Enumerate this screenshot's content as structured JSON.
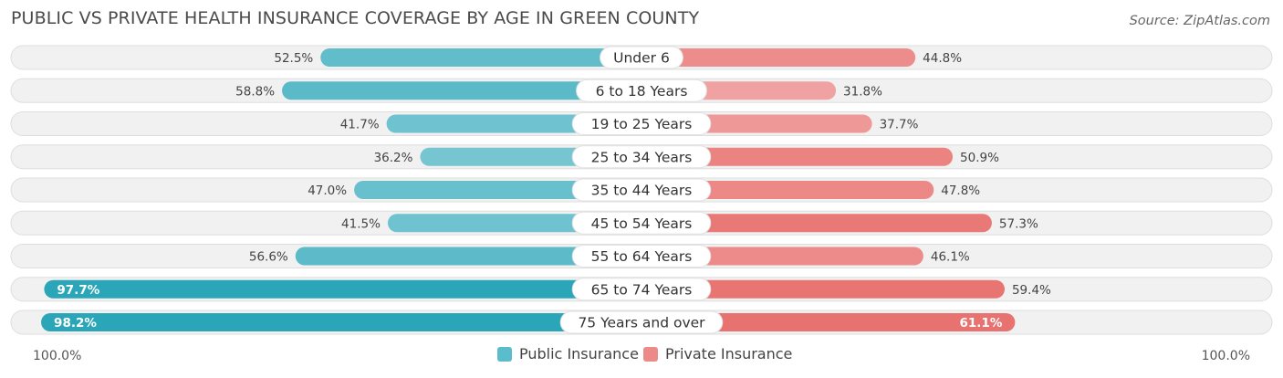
{
  "title": "PUBLIC VS PRIVATE HEALTH INSURANCE COVERAGE BY AGE IN GREEN COUNTY",
  "source": "Source: ZipAtlas.com",
  "axis": {
    "left_label": "100.0%",
    "right_label": "100.0%"
  },
  "legend": {
    "public": "Public Insurance",
    "private": "Private Insurance"
  },
  "colors": {
    "public_light": "#76c6d2",
    "public_dark": "#2aa6b8",
    "private_light": "#f0a3a3",
    "private_dark": "#e8716e",
    "track": "#f1f1f1",
    "track_border": "#dedede"
  },
  "chart_data": {
    "type": "bar",
    "orientation": "horizontal-diverging",
    "categories": [
      "Under 6",
      "6 to 18 Years",
      "19 to 25 Years",
      "25 to 34 Years",
      "35 to 44 Years",
      "45 to 54 Years",
      "55 to 64 Years",
      "65 to 74 Years",
      "75 Years and over"
    ],
    "series": [
      {
        "name": "Public Insurance",
        "values": [
          52.5,
          58.8,
          41.7,
          36.2,
          47.0,
          41.5,
          56.6,
          97.7,
          98.2
        ],
        "labels": [
          "52.5%",
          "58.8%",
          "41.7%",
          "36.2%",
          "47.0%",
          "41.5%",
          "56.6%",
          "97.7%",
          "98.2%"
        ]
      },
      {
        "name": "Private Insurance",
        "values": [
          44.8,
          31.8,
          37.7,
          50.9,
          47.8,
          57.3,
          46.1,
          59.4,
          61.1
        ],
        "labels": [
          "44.8%",
          "31.8%",
          "37.7%",
          "50.9%",
          "47.8%",
          "57.3%",
          "46.1%",
          "59.4%",
          "61.1%"
        ]
      }
    ],
    "xlim": [
      -100,
      100
    ],
    "title": "PUBLIC VS PRIVATE HEALTH INSURANCE COVERAGE BY AGE IN GREEN COUNTY"
  }
}
